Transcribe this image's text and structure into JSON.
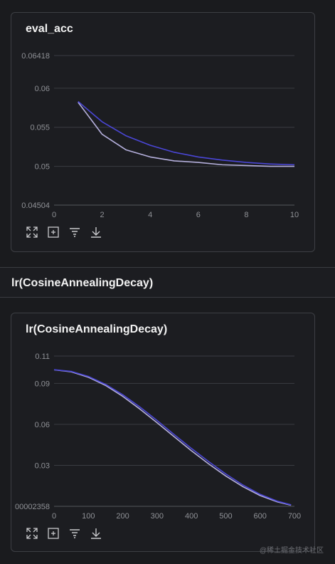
{
  "colors": {
    "series_primary": "#4a46d6",
    "series_secondary": "#b5b0dd",
    "grid": "#3a3c42",
    "background": "#1c1d21"
  },
  "card1": {
    "title": "eval_acc",
    "toolbar": [
      "expand-icon",
      "fit-icon",
      "filter-icon",
      "download-icon"
    ]
  },
  "section": {
    "title": "lr(CosineAnnealingDecay)"
  },
  "card2": {
    "title": "lr(CosineAnnealingDecay)",
    "toolbar": [
      "expand-icon",
      "fit-icon",
      "filter-icon",
      "download-icon"
    ]
  },
  "watermark": "@稀土掘金技术社区",
  "chart_data": [
    {
      "type": "line",
      "title": "eval_acc",
      "xlim": [
        0,
        10
      ],
      "ylim": [
        0.04504,
        0.06418
      ],
      "x_ticks": [
        "0",
        "2",
        "4",
        "6",
        "8",
        "10"
      ],
      "y_ticks": [
        "0.06418",
        "0.06",
        "0.055",
        "0.05",
        "0.04504"
      ],
      "x": [
        1,
        2,
        3,
        4,
        5,
        6,
        7,
        8,
        9,
        10
      ],
      "series": [
        {
          "color": "#4a46d6",
          "values": [
            0.0583,
            0.0557,
            0.0539,
            0.0527,
            0.0518,
            0.0512,
            0.0508,
            0.0505,
            0.0503,
            0.0502
          ]
        },
        {
          "color": "#b5b0dd",
          "values": [
            0.0582,
            0.0541,
            0.0521,
            0.0512,
            0.0507,
            0.0505,
            0.0502,
            0.0501,
            0.05,
            0.05
          ]
        }
      ],
      "grid": true
    },
    {
      "type": "line",
      "title": "lr(CosineAnnealingDecay)",
      "xlim": [
        0,
        700
      ],
      "ylim": [
        2.358e-05,
        0.11
      ],
      "x_ticks": [
        "0",
        "100",
        "200",
        "300",
        "400",
        "500",
        "600",
        "700"
      ],
      "y_ticks": [
        "0.11",
        "0.09",
        "0.06",
        "0.03",
        "00002358"
      ],
      "x": [
        0,
        50,
        100,
        150,
        200,
        250,
        300,
        350,
        400,
        450,
        500,
        550,
        600,
        650,
        690
      ],
      "series": [
        {
          "color": "#4a46d6",
          "values": [
            0.1,
            0.0988,
            0.0951,
            0.0893,
            0.0817,
            0.0727,
            0.0628,
            0.0525,
            0.0424,
            0.0328,
            0.0237,
            0.0156,
            0.0088,
            0.0038,
            0.0011
          ]
        },
        {
          "color": "#b5b0dd",
          "values": [
            0.0999,
            0.0985,
            0.0945,
            0.0885,
            0.0805,
            0.0712,
            0.0612,
            0.0509,
            0.0407,
            0.0311,
            0.0222,
            0.0144,
            0.0079,
            0.0033,
            0.0008
          ]
        }
      ],
      "grid": true
    }
  ]
}
